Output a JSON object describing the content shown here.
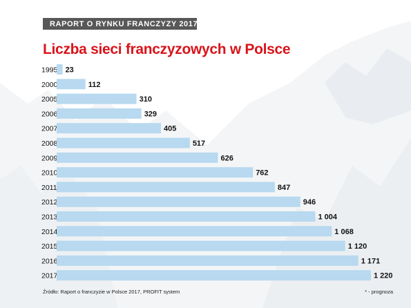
{
  "header": {
    "banner_text": "RAPORT O RYNKU FRANCZYZY 2017",
    "accent_color": "#e30613",
    "banner_color": "#585858"
  },
  "footer": {
    "source": "Źródło: Raport o franczyzie w Polsce 2017, PROFIT system",
    "note": "* - prognoza"
  },
  "chart_data": {
    "type": "bar",
    "orientation": "horizontal",
    "title": "Liczba sieci franczyzowych w Polsce",
    "title_color": "#d9141a",
    "bar_color": "#b8d9ef",
    "categories": [
      "1995",
      "2000",
      "2005",
      "2006",
      "2007",
      "2008",
      "2009",
      "2010",
      "2011",
      "2012",
      "2013",
      "2014",
      "2015",
      "2016",
      "2017*"
    ],
    "values": [
      23,
      112,
      310,
      329,
      405,
      517,
      626,
      762,
      847,
      946,
      1004,
      1068,
      1120,
      1171,
      1220
    ],
    "value_labels": [
      "23",
      "112",
      "310",
      "329",
      "405",
      "517",
      "626",
      "762",
      "847",
      "946",
      "1 004",
      "1 068",
      "1 120",
      "1 171",
      "1 220"
    ],
    "xlim": [
      0,
      1220
    ],
    "grid": false,
    "legend": "none"
  }
}
